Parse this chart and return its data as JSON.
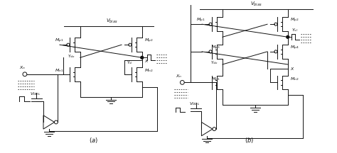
{
  "bg_color": "#ffffff",
  "line_color": "#111111",
  "fig_width": 4.74,
  "fig_height": 2.16,
  "dpi": 100
}
